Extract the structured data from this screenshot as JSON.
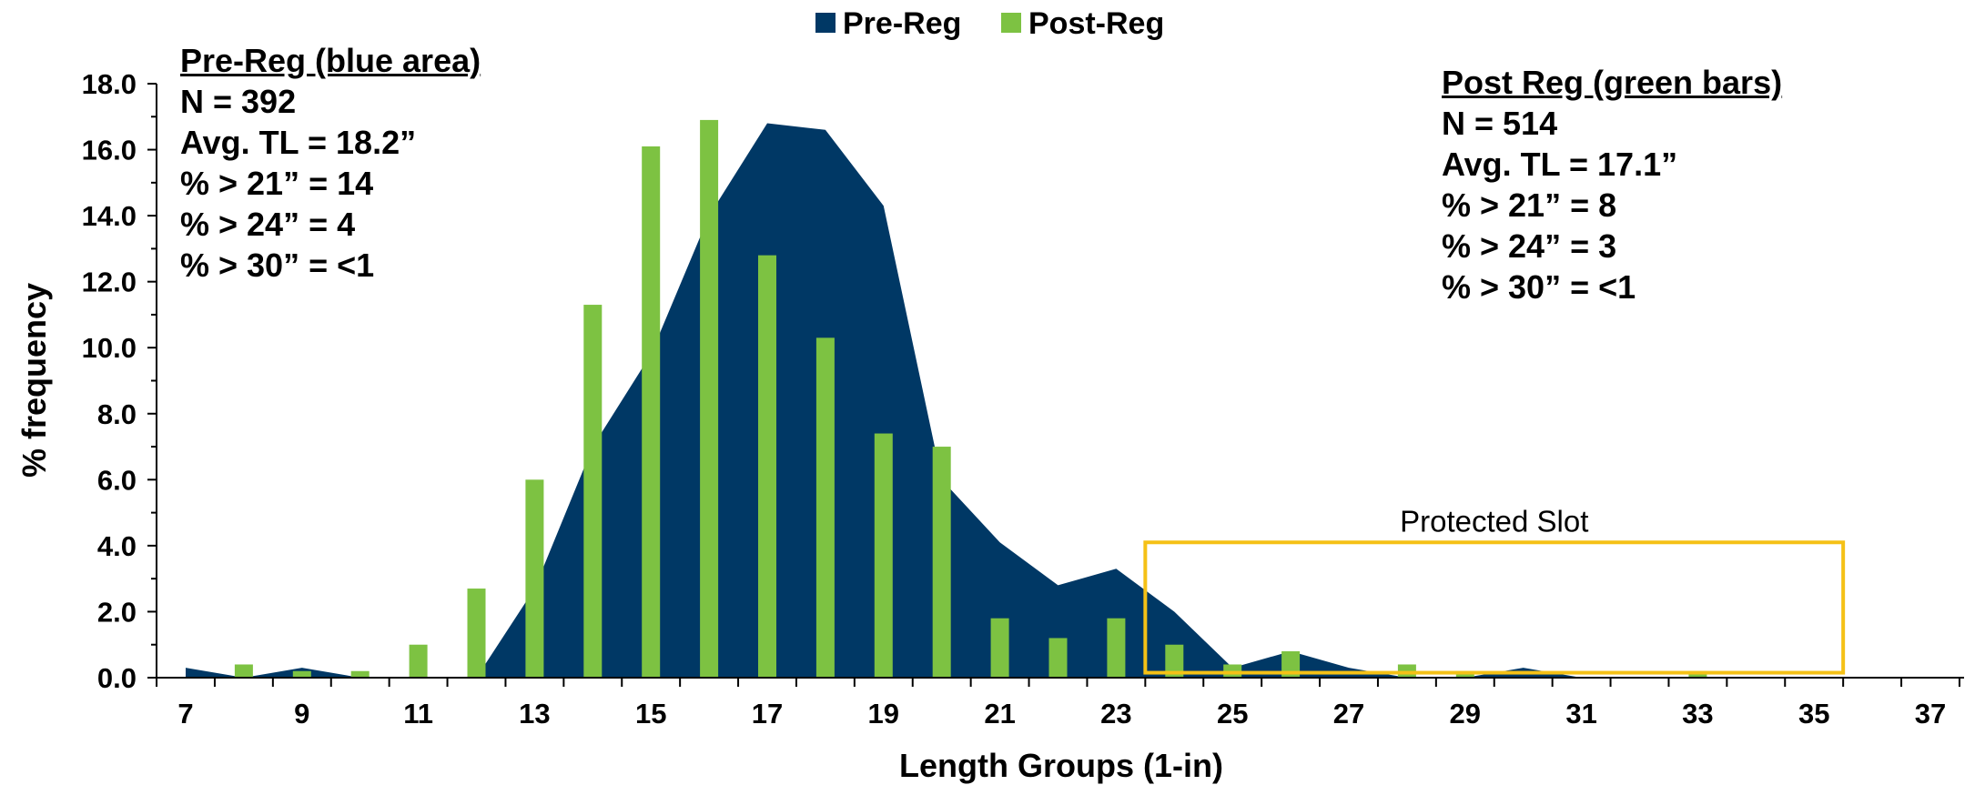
{
  "chart_data": {
    "type": "bar",
    "xlabel": "Length Groups (1-in)",
    "ylabel": "% frequency",
    "ylim": [
      0,
      18
    ],
    "y_ticks": [
      "0.0",
      "2.0",
      "4.0",
      "6.0",
      "8.0",
      "10.0",
      "12.0",
      "14.0",
      "16.0",
      "18.0"
    ],
    "x_range": [
      7,
      37
    ],
    "x_ticks": [
      "7",
      "9",
      "11",
      "13",
      "15",
      "17",
      "19",
      "21",
      "23",
      "25",
      "27",
      "29",
      "31",
      "33",
      "35",
      "37"
    ],
    "legend_position": "top-center",
    "series": [
      {
        "name": "Pre-Reg",
        "kind": "area",
        "color": "#003865",
        "x": [
          7,
          8,
          9,
          10,
          11,
          12,
          13,
          14,
          15,
          16,
          17,
          18,
          19,
          20,
          21,
          22,
          23,
          24,
          25,
          26,
          27,
          28,
          29,
          30,
          31,
          32,
          33,
          34,
          35,
          36,
          37
        ],
        "values": [
          0.3,
          0.0,
          0.3,
          0.0,
          0.0,
          0.0,
          2.7,
          7.0,
          9.8,
          14.0,
          16.8,
          16.6,
          14.3,
          6.0,
          4.1,
          2.8,
          3.3,
          2.0,
          0.3,
          0.8,
          0.3,
          0.0,
          0.0,
          0.3,
          0.0,
          0.0,
          0.0,
          0.0,
          0.0,
          0.0,
          0.0
        ]
      },
      {
        "name": "Post-Reg",
        "kind": "bar",
        "color": "#7DC242",
        "x": [
          8,
          9,
          10,
          11,
          12,
          13,
          14,
          15,
          16,
          17,
          18,
          19,
          20,
          21,
          22,
          23,
          24,
          25,
          26,
          28,
          29,
          33
        ],
        "values": [
          0.4,
          0.2,
          0.2,
          1.0,
          2.7,
          6.0,
          11.3,
          16.1,
          16.9,
          12.8,
          10.3,
          7.4,
          7.0,
          1.8,
          1.2,
          1.8,
          1.0,
          0.4,
          0.8,
          0.4,
          0.2,
          0.2
        ]
      }
    ],
    "slot_box": {
      "label": "Protected Slot",
      "x_start": 23.5,
      "x_end": 35.5,
      "y_top": 4.1,
      "y_bottom": 0.15,
      "color": "#F5C116"
    }
  },
  "annotations": {
    "pre": {
      "heading": "Pre-Reg (blue area)",
      "lines": [
        "N = 392",
        "Avg. TL = 18.2”",
        "% > 21” = 14",
        "% > 24” = 4",
        "% > 30” = <1"
      ]
    },
    "post": {
      "heading": "Post Reg (green bars)",
      "lines": [
        "N = 514",
        "Avg. TL = 17.1”",
        "% > 21” = 8",
        "% > 24” = 3",
        "% > 30” = <1"
      ]
    }
  }
}
